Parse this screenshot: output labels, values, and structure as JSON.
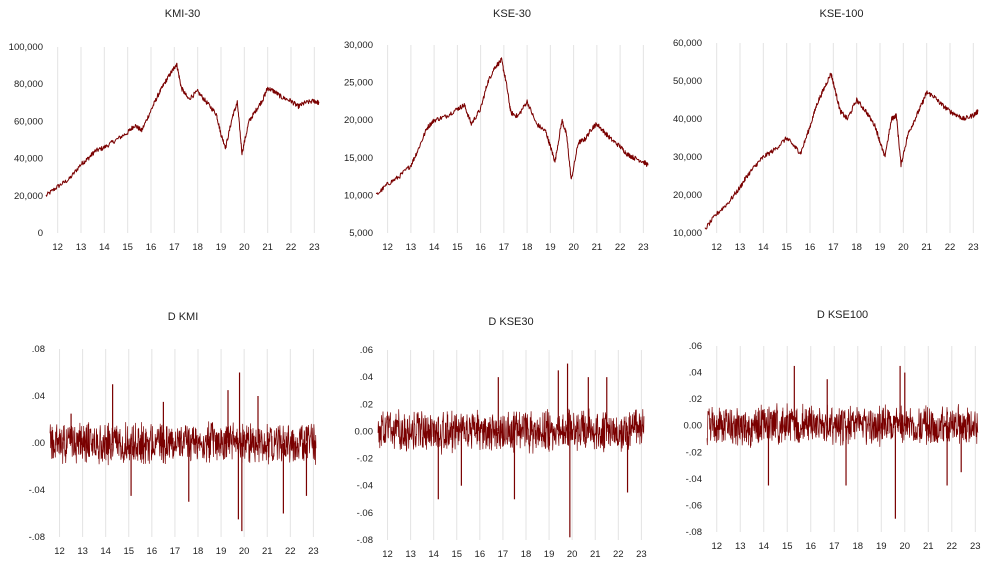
{
  "colors": {
    "series": "#7a0000",
    "grid": "#e3e3e3",
    "text": "#222222"
  },
  "chart_data": [
    {
      "type": "line",
      "title": "KMI-30",
      "x_tick_labels": [
        "12",
        "13",
        "14",
        "15",
        "16",
        "17",
        "18",
        "19",
        "20",
        "21",
        "22",
        "23"
      ],
      "y_tick_labels": [
        "0",
        "20,000",
        "40,000",
        "60,000",
        "80,000",
        "100,000"
      ],
      "ylim": [
        0,
        100000
      ],
      "grid": "vertical",
      "x": [
        11.5,
        12,
        12.5,
        13,
        13.3,
        13.6,
        14,
        14.5,
        15,
        15.3,
        15.6,
        16,
        16.3,
        16.6,
        16.9,
        17.1,
        17.3,
        17.6,
        18,
        18.4,
        18.8,
        19,
        19.2,
        19.5,
        19.7,
        19.9,
        20.2,
        20.5,
        20.8,
        21,
        21.3,
        21.6,
        22,
        22.3,
        22.6,
        23,
        23.2
      ],
      "values": [
        20000,
        25000,
        29000,
        37000,
        40000,
        44000,
        46000,
        50000,
        54000,
        58000,
        55000,
        66000,
        74000,
        81000,
        87000,
        91000,
        78000,
        72000,
        76000,
        70000,
        64000,
        53000,
        46000,
        63000,
        70000,
        43000,
        60000,
        66000,
        72000,
        78000,
        76000,
        73000,
        71000,
        68000,
        70000,
        71000,
        70000
      ]
    },
    {
      "type": "line",
      "title": "KSE-30",
      "x_tick_labels": [
        "12",
        "13",
        "14",
        "15",
        "16",
        "17",
        "18",
        "19",
        "20",
        "21",
        "22",
        "23"
      ],
      "y_tick_labels": [
        "5,000",
        "10,000",
        "15,000",
        "20,000",
        "25,000",
        "30,000"
      ],
      "ylim": [
        5000,
        30000
      ],
      "grid": "vertical",
      "x": [
        11.5,
        12,
        12.5,
        13,
        13.3,
        13.7,
        14,
        14.5,
        15,
        15.3,
        15.6,
        16,
        16.3,
        16.6,
        16.9,
        17.1,
        17.3,
        17.6,
        18,
        18.4,
        18.8,
        19,
        19.2,
        19.5,
        19.7,
        19.9,
        20.2,
        20.5,
        20.8,
        21,
        21.3,
        21.6,
        22,
        22.3,
        22.6,
        23,
        23.2
      ],
      "values": [
        10000,
        11500,
        12500,
        14000,
        16000,
        19000,
        20000,
        20500,
        21500,
        22000,
        19500,
        21500,
        25000,
        27000,
        28000,
        25000,
        21000,
        20500,
        22500,
        19500,
        18500,
        16500,
        14500,
        20000,
        18000,
        12000,
        17000,
        17500,
        19000,
        19500,
        18500,
        17500,
        16500,
        15500,
        15000,
        14500,
        14000
      ]
    },
    {
      "type": "line",
      "title": "KSE-100",
      "x_tick_labels": [
        "12",
        "13",
        "14",
        "15",
        "16",
        "17",
        "18",
        "19",
        "20",
        "21",
        "22",
        "23"
      ],
      "y_tick_labels": [
        "10,000",
        "20,000",
        "30,000",
        "40,000",
        "50,000",
        "60,000"
      ],
      "ylim": [
        10000,
        60000
      ],
      "grid": "vertical",
      "x": [
        11.5,
        12,
        12.5,
        13,
        13.3,
        13.7,
        14,
        14.5,
        15,
        15.3,
        15.6,
        16,
        16.3,
        16.6,
        16.9,
        17.1,
        17.3,
        17.6,
        18,
        18.4,
        18.8,
        19,
        19.2,
        19.5,
        19.7,
        19.9,
        20.2,
        20.5,
        20.8,
        21,
        21.3,
        21.6,
        22,
        22.3,
        22.6,
        23,
        23.2
      ],
      "values": [
        11000,
        15000,
        18000,
        22000,
        25000,
        28000,
        30000,
        32000,
        35000,
        33000,
        31000,
        38000,
        44000,
        48000,
        52000,
        47000,
        42000,
        40000,
        45000,
        42000,
        38000,
        34000,
        30000,
        40000,
        41000,
        28000,
        36000,
        40000,
        44000,
        47000,
        46000,
        44000,
        42000,
        41000,
        40000,
        41000,
        42000
      ]
    },
    {
      "type": "line",
      "title": "D KMI",
      "x_tick_labels": [
        "12",
        "13",
        "14",
        "15",
        "16",
        "17",
        "18",
        "19",
        "20",
        "21",
        "22",
        "23"
      ],
      "y_tick_labels": [
        "-.08",
        "-.04",
        ".00",
        ".04",
        ".08"
      ],
      "ylim": [
        -0.08,
        0.08
      ],
      "grid": "vertical",
      "spikes": [
        [
          14.3,
          0.05
        ],
        [
          15.1,
          -0.045
        ],
        [
          17.6,
          -0.05
        ],
        [
          19.3,
          0.045
        ],
        [
          19.8,
          0.06
        ],
        [
          19.9,
          -0.075
        ],
        [
          19.75,
          -0.065
        ],
        [
          21.7,
          -0.06
        ],
        [
          22.7,
          -0.045
        ],
        [
          12.5,
          0.025
        ],
        [
          16.5,
          0.035
        ],
        [
          20.6,
          0.04
        ]
      ]
    },
    {
      "type": "line",
      "title": "D KSE30",
      "x_tick_labels": [
        "12",
        "13",
        "14",
        "15",
        "16",
        "17",
        "18",
        "19",
        "20",
        "21",
        "22",
        "23"
      ],
      "y_tick_labels": [
        "-.08",
        "-.06",
        "-.04",
        "-.02",
        "0.00",
        ".02",
        ".04",
        ".06"
      ],
      "ylim": [
        -0.08,
        0.06
      ],
      "grid": "vertical",
      "spikes": [
        [
          14.2,
          -0.05
        ],
        [
          15.2,
          -0.04
        ],
        [
          17.5,
          -0.05
        ],
        [
          19.4,
          0.045
        ],
        [
          19.8,
          0.05
        ],
        [
          19.9,
          -0.078
        ],
        [
          21.5,
          0.04
        ],
        [
          22.4,
          -0.045
        ],
        [
          16.8,
          0.04
        ],
        [
          20.7,
          0.04
        ]
      ]
    },
    {
      "type": "line",
      "title": "D KSE100",
      "x_tick_labels": [
        "12",
        "13",
        "14",
        "15",
        "16",
        "17",
        "18",
        "19",
        "20",
        "21",
        "22",
        "23"
      ],
      "y_tick_labels": [
        "-.08",
        "-.06",
        "-.04",
        "-.02",
        "0.00",
        ".02",
        ".04",
        ".06"
      ],
      "ylim": [
        -0.08,
        0.06
      ],
      "grid": "vertical",
      "spikes": [
        [
          14.2,
          -0.045
        ],
        [
          15.3,
          0.045
        ],
        [
          17.5,
          -0.045
        ],
        [
          19.6,
          -0.07
        ],
        [
          19.8,
          0.045
        ],
        [
          20.0,
          0.04
        ],
        [
          21.8,
          -0.045
        ],
        [
          22.4,
          -0.035
        ],
        [
          16.7,
          0.035
        ]
      ]
    }
  ]
}
